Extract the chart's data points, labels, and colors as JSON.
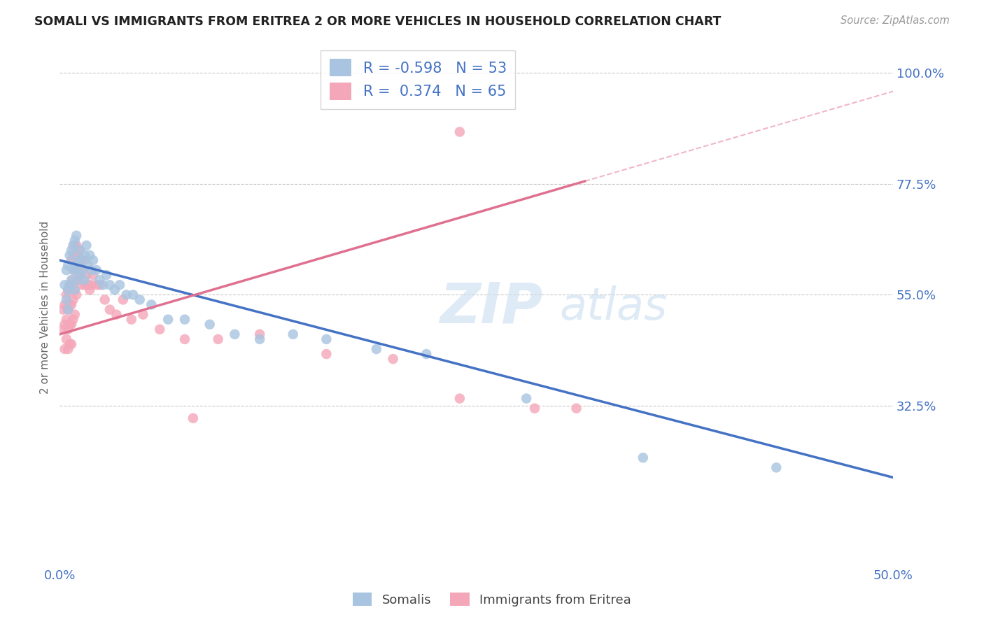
{
  "title": "SOMALI VS IMMIGRANTS FROM ERITREA 2 OR MORE VEHICLES IN HOUSEHOLD CORRELATION CHART",
  "source": "Source: ZipAtlas.com",
  "xlabel_somalis": "Somalis",
  "xlabel_eritrea": "Immigrants from Eritrea",
  "ylabel": "2 or more Vehicles in Household",
  "xmin": 0.0,
  "xmax": 0.5,
  "ymin": 0.0,
  "ymax": 1.05,
  "ytick_vals": [
    0.325,
    0.55,
    0.775,
    1.0
  ],
  "ytick_labels": [
    "32.5%",
    "55.0%",
    "77.5%",
    "100.0%"
  ],
  "xtick_positions": [
    0.0,
    0.5
  ],
  "xtick_labels": [
    "0.0%",
    "50.0%"
  ],
  "r_somali": -0.598,
  "n_somali": 53,
  "r_eritrea": 0.374,
  "n_eritrea": 65,
  "somali_color": "#a8c4e0",
  "eritrea_color": "#f4a7b9",
  "somali_line_color": "#4472c4",
  "eritrea_line_color": "#e07090",
  "watermark_zip": "ZIP",
  "watermark_atlas": "atlas",
  "somali_x": [
    0.003,
    0.004,
    0.004,
    0.005,
    0.005,
    0.005,
    0.006,
    0.006,
    0.007,
    0.007,
    0.008,
    0.008,
    0.009,
    0.009,
    0.009,
    0.01,
    0.01,
    0.011,
    0.011,
    0.012,
    0.012,
    0.013,
    0.014,
    0.015,
    0.015,
    0.016,
    0.017,
    0.018,
    0.019,
    0.02,
    0.022,
    0.024,
    0.026,
    0.028,
    0.03,
    0.033,
    0.036,
    0.04,
    0.044,
    0.048,
    0.055,
    0.065,
    0.075,
    0.09,
    0.105,
    0.12,
    0.14,
    0.16,
    0.19,
    0.22,
    0.28,
    0.35,
    0.43
  ],
  "somali_y": [
    0.57,
    0.6,
    0.54,
    0.61,
    0.56,
    0.52,
    0.63,
    0.57,
    0.64,
    0.58,
    0.65,
    0.6,
    0.66,
    0.61,
    0.56,
    0.67,
    0.6,
    0.62,
    0.58,
    0.64,
    0.59,
    0.62,
    0.6,
    0.63,
    0.58,
    0.65,
    0.61,
    0.63,
    0.6,
    0.62,
    0.6,
    0.58,
    0.57,
    0.59,
    0.57,
    0.56,
    0.57,
    0.55,
    0.55,
    0.54,
    0.53,
    0.5,
    0.5,
    0.49,
    0.47,
    0.46,
    0.47,
    0.46,
    0.44,
    0.43,
    0.34,
    0.22,
    0.2
  ],
  "eritrea_x": [
    0.002,
    0.002,
    0.003,
    0.003,
    0.003,
    0.004,
    0.004,
    0.004,
    0.005,
    0.005,
    0.005,
    0.005,
    0.006,
    0.006,
    0.006,
    0.006,
    0.007,
    0.007,
    0.007,
    0.007,
    0.007,
    0.008,
    0.008,
    0.008,
    0.008,
    0.009,
    0.009,
    0.009,
    0.009,
    0.01,
    0.01,
    0.01,
    0.011,
    0.011,
    0.012,
    0.012,
    0.013,
    0.013,
    0.014,
    0.015,
    0.015,
    0.016,
    0.017,
    0.018,
    0.019,
    0.02,
    0.022,
    0.024,
    0.027,
    0.03,
    0.034,
    0.038,
    0.043,
    0.05,
    0.06,
    0.075,
    0.095,
    0.12,
    0.16,
    0.2,
    0.24,
    0.285,
    0.31,
    0.24,
    0.08
  ],
  "eritrea_y": [
    0.52,
    0.48,
    0.53,
    0.49,
    0.44,
    0.55,
    0.5,
    0.46,
    0.56,
    0.52,
    0.48,
    0.44,
    0.57,
    0.53,
    0.49,
    0.45,
    0.62,
    0.57,
    0.53,
    0.49,
    0.45,
    0.63,
    0.58,
    0.54,
    0.5,
    0.65,
    0.6,
    0.56,
    0.51,
    0.65,
    0.6,
    0.55,
    0.63,
    0.58,
    0.64,
    0.59,
    0.62,
    0.57,
    0.6,
    0.62,
    0.57,
    0.59,
    0.57,
    0.56,
    0.57,
    0.59,
    0.57,
    0.57,
    0.54,
    0.52,
    0.51,
    0.54,
    0.5,
    0.51,
    0.48,
    0.46,
    0.46,
    0.47,
    0.43,
    0.42,
    0.34,
    0.32,
    0.32,
    0.88,
    0.3
  ],
  "somali_line_x0": 0.0,
  "somali_line_x1": 0.5,
  "somali_line_y0": 0.62,
  "somali_line_y1": 0.18,
  "eritrea_line_x0": 0.0,
  "eritrea_line_x1": 0.315,
  "eritrea_line_y0": 0.47,
  "eritrea_line_y1": 0.78
}
